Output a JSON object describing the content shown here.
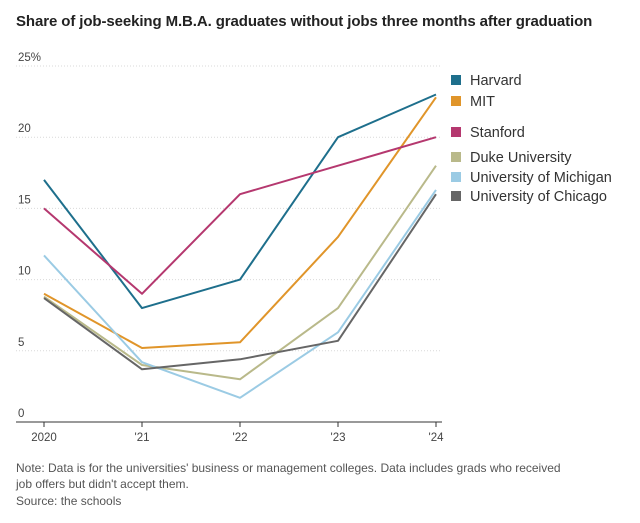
{
  "title": "Share of job-seeking M.B.A. graduates without jobs three months after graduation",
  "note": "Note: Data is for the universities' business or management colleges. Data includes grads who received job offers but didn't accept them.",
  "source": "Source: the schools",
  "chart_data": {
    "type": "line",
    "title": "Share of job-seeking M.B.A. graduates without jobs three months after graduation",
    "xlabel": "",
    "ylabel": "",
    "categories": [
      "2020",
      "'21",
      "'22",
      "'23",
      "'24"
    ],
    "ylim": [
      0,
      25
    ],
    "yticks": [
      0,
      5,
      10,
      15,
      20,
      25
    ],
    "ytick_labels": [
      "0",
      "5",
      "10",
      "15",
      "20",
      "25%"
    ],
    "grid": "horizontal",
    "legend": "right",
    "series": [
      {
        "name": "Harvard",
        "color": "#1e6f8c",
        "values": [
          17,
          8,
          10,
          20,
          23
        ]
      },
      {
        "name": "MIT",
        "color": "#e0952a",
        "values": [
          9,
          5.2,
          5.6,
          13,
          22.8
        ]
      },
      {
        "name": "Stanford",
        "color": "#b5386f",
        "values": [
          15,
          9,
          16,
          18,
          20
        ]
      },
      {
        "name": "Duke University",
        "color": "#b9b98a",
        "values": [
          8.8,
          4,
          3,
          8,
          18
        ]
      },
      {
        "name": "University of Michigan",
        "color": "#9bcbe4",
        "values": [
          11.7,
          4.2,
          1.7,
          6.3,
          16.3
        ]
      },
      {
        "name": "University of Chicago",
        "color": "#666666",
        "values": [
          8.7,
          3.7,
          4.4,
          5.7,
          16
        ]
      }
    ]
  }
}
